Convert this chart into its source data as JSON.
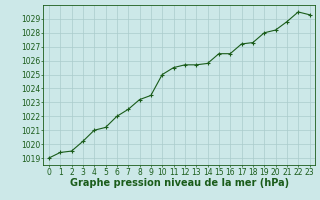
{
  "x": [
    0,
    1,
    2,
    3,
    4,
    5,
    6,
    7,
    8,
    9,
    10,
    11,
    12,
    13,
    14,
    15,
    16,
    17,
    18,
    19,
    20,
    21,
    22,
    23
  ],
  "y": [
    1019.0,
    1019.4,
    1019.5,
    1020.2,
    1021.0,
    1021.2,
    1022.0,
    1022.5,
    1023.2,
    1023.5,
    1025.0,
    1025.5,
    1025.7,
    1025.7,
    1025.8,
    1026.5,
    1026.5,
    1027.2,
    1027.3,
    1028.0,
    1028.2,
    1028.8,
    1029.5,
    1029.3
  ],
  "ylim": [
    1018.5,
    1030.0
  ],
  "xlim": [
    -0.5,
    23.5
  ],
  "yticks": [
    1019,
    1020,
    1021,
    1022,
    1023,
    1024,
    1025,
    1026,
    1027,
    1028,
    1029
  ],
  "xticks": [
    0,
    1,
    2,
    3,
    4,
    5,
    6,
    7,
    8,
    9,
    10,
    11,
    12,
    13,
    14,
    15,
    16,
    17,
    18,
    19,
    20,
    21,
    22,
    23
  ],
  "line_color": "#1a5c1a",
  "marker": "+",
  "bg_color": "#cce8e8",
  "grid_color": "#aacccc",
  "xlabel": "Graphe pression niveau de la mer (hPa)",
  "xlabel_color": "#1a5c1a",
  "tick_color": "#1a5c1a",
  "tick_fontsize": 5.5,
  "xlabel_fontsize": 7.0,
  "line_width": 0.8,
  "marker_size": 3,
  "marker_edge_width": 0.8
}
